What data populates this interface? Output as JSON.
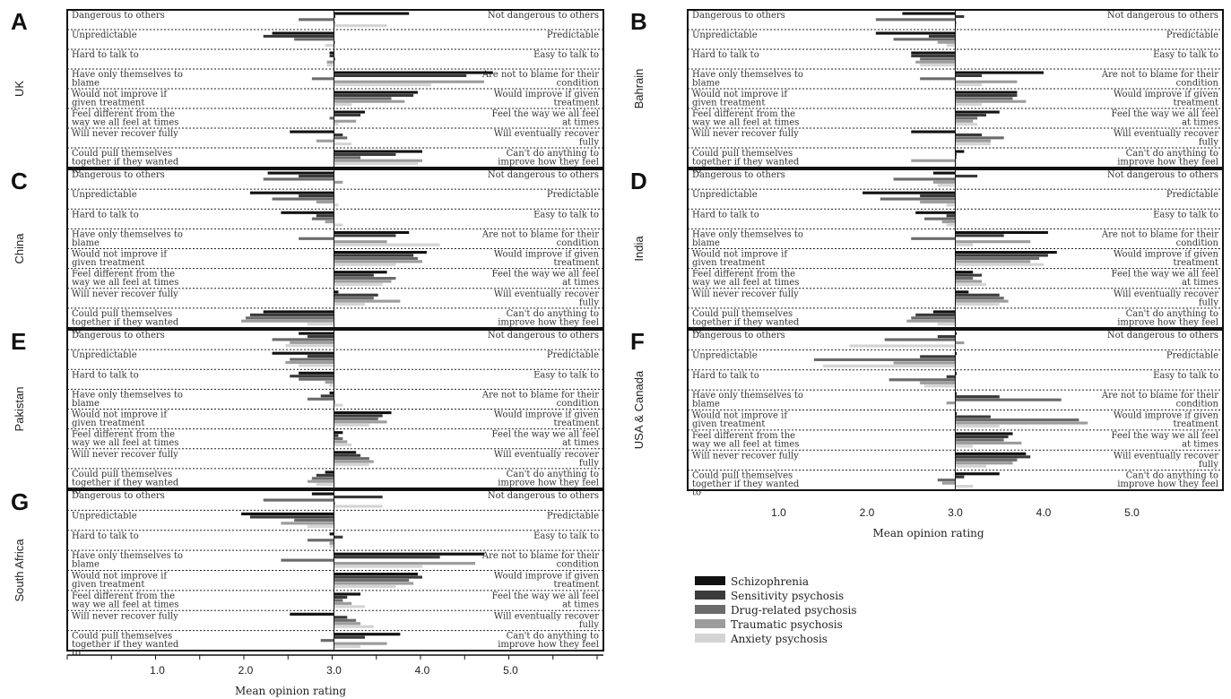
{
  "chart_data": {
    "type": "bar",
    "orientation": "horizontal",
    "xlim": [
      0,
      6
    ],
    "reference_line": 3.0,
    "grid": false,
    "legend_placement": "bottom-right",
    "series": [
      {
        "name": "Schizophrenia",
        "color": "#111111"
      },
      {
        "name": "Sensitivity psychosis",
        "color": "#3a3a3a"
      },
      {
        "name": "Drug-related psychosis",
        "color": "#6b6b6b"
      },
      {
        "name": "Traumatic psychosis",
        "color": "#9c9c9c"
      },
      {
        "name": "Anxiety psychosis",
        "color": "#d4d4d4"
      }
    ],
    "items": [
      {
        "left": "Dangerous to others",
        "right": "Not dangerous to others"
      },
      {
        "left": "Unpredictable",
        "right": "Predictable"
      },
      {
        "left": "Hard to talk to",
        "right": "Easy to talk to"
      },
      {
        "left": "Have only themselves to blame",
        "right": "Are not to blame for their condition"
      },
      {
        "left": "Would not improve if given treatment",
        "right": "Would improve if given treatment"
      },
      {
        "left": "Feel different from the way we all feel at times",
        "right": "Feel the way we all feel at times"
      },
      {
        "left": "Will never recover fully",
        "right": "Will eventually recover fully"
      },
      {
        "left": "Could pull themselves together if they wanted to",
        "right": "Can't do anything to improve how they feel"
      }
    ],
    "left_axis": {
      "ticks": [
        "1.0",
        "2.0",
        "3.0",
        "4.0",
        "5.0"
      ],
      "xlabel": "Mean opinion rating"
    },
    "right_axis": {
      "ticks": [
        "1.0",
        "2.0",
        "3.0",
        "4.0",
        "5.0"
      ],
      "xlabel": "Mean opinion rating"
    },
    "panels": [
      {
        "letter": "A",
        "country": "UK",
        "values": [
          [
            3.85,
            3.0,
            2.6,
            3.0,
            3.6
          ],
          [
            2.3,
            2.2,
            2.55,
            3.0,
            2.9
          ],
          [
            2.95,
            2.95,
            3.0,
            2.92,
            2.92
          ],
          [
            4.8,
            4.5,
            2.75,
            4.7,
            4.1
          ],
          [
            3.95,
            3.9,
            3.65,
            3.8,
            3.2
          ],
          [
            3.35,
            3.3,
            2.95,
            3.25,
            3.05
          ],
          [
            2.5,
            3.1,
            3.15,
            2.8,
            3.2
          ],
          [
            4.0,
            3.7,
            3.3,
            4.0,
            3.95
          ]
        ]
      },
      {
        "letter": "B",
        "country": "Bahrain",
        "values": [
          [
            2.4,
            3.1,
            2.1,
            3.0,
            3.0
          ],
          [
            2.1,
            2.7,
            2.3,
            2.8,
            2.9
          ],
          [
            2.5,
            2.5,
            2.6,
            2.55,
            2.6
          ],
          [
            4.0,
            3.3,
            2.6,
            3.7,
            3.3
          ],
          [
            3.7,
            3.7,
            3.65,
            3.8,
            3.3
          ],
          [
            3.5,
            3.35,
            3.25,
            3.2,
            3.25
          ],
          [
            2.5,
            3.3,
            3.55,
            3.4,
            3.4
          ],
          [
            3.1,
            3.0,
            3.0,
            2.5,
            3.0
          ]
        ]
      },
      {
        "letter": "C",
        "country": "China",
        "values": [
          [
            2.25,
            2.6,
            2.2,
            3.1,
            3.0
          ],
          [
            2.05,
            2.6,
            2.3,
            2.8,
            3.05
          ],
          [
            2.4,
            2.8,
            2.75,
            2.9,
            3.1
          ],
          [
            3.85,
            3.7,
            2.6,
            3.6,
            4.2
          ],
          [
            4.05,
            3.9,
            3.95,
            4.0,
            3.7
          ],
          [
            3.6,
            3.45,
            3.7,
            3.65,
            3.55
          ],
          [
            3.05,
            3.5,
            3.45,
            3.75,
            3.35
          ],
          [
            2.2,
            2.05,
            2.0,
            1.95,
            2.7
          ]
        ]
      },
      {
        "letter": "D",
        "country": "India",
        "values": [
          [
            2.75,
            3.25,
            2.3,
            2.75,
            2.8
          ],
          [
            1.95,
            2.6,
            2.15,
            2.6,
            2.9
          ],
          [
            2.55,
            2.9,
            2.65,
            2.85,
            2.9
          ],
          [
            4.05,
            3.55,
            2.5,
            3.85,
            3.2
          ],
          [
            4.15,
            4.05,
            3.95,
            3.85,
            4.0
          ],
          [
            3.2,
            3.3,
            3.2,
            3.3,
            3.35
          ],
          [
            3.15,
            3.5,
            3.55,
            3.6,
            3.5
          ],
          [
            2.75,
            2.55,
            2.5,
            2.45,
            2.8
          ]
        ]
      },
      {
        "letter": "E",
        "country": "Pakistan",
        "values": [
          [
            2.6,
            2.7,
            2.3,
            2.5,
            2.45
          ],
          [
            2.3,
            2.7,
            2.5,
            2.45,
            2.6
          ],
          [
            2.6,
            2.5,
            2.6,
            2.9,
            2.95
          ],
          [
            2.95,
            2.85,
            2.7,
            3.0,
            3.1
          ],
          [
            3.65,
            3.55,
            3.5,
            3.6,
            3.4
          ],
          [
            3.1,
            3.05,
            3.1,
            3.15,
            3.2
          ],
          [
            3.25,
            3.3,
            3.4,
            3.45,
            3.4
          ],
          [
            2.9,
            2.8,
            2.75,
            2.7,
            2.8
          ]
        ]
      },
      {
        "letter": "F",
        "country": "USA & Canada",
        "values": [
          [
            3.0,
            2.8,
            2.2,
            3.1,
            1.8
          ],
          [
            3.0,
            2.6,
            1.4,
            2.3,
            1.5
          ],
          [
            3.0,
            2.9,
            2.25,
            2.6,
            2.65
          ],
          [
            3.0,
            3.5,
            4.2,
            2.9,
            3.0
          ],
          [
            3.0,
            3.4,
            4.4,
            4.5,
            3.5
          ],
          [
            3.65,
            3.6,
            3.55,
            3.75,
            3.2
          ],
          [
            3.8,
            3.85,
            3.7,
            3.65,
            3.35
          ],
          [
            3.5,
            3.1,
            2.8,
            2.85,
            3.2
          ]
        ]
      },
      {
        "letter": "G",
        "country": "South Africa",
        "values": [
          [
            2.75,
            3.55,
            2.2,
            3.0,
            3.55
          ],
          [
            1.95,
            2.05,
            2.55,
            2.4,
            2.7
          ],
          [
            2.95,
            3.1,
            2.7,
            2.95,
            2.95
          ],
          [
            4.7,
            4.2,
            2.4,
            4.6,
            4.0
          ],
          [
            3.95,
            4.0,
            3.85,
            3.9,
            3.7
          ],
          [
            3.3,
            3.15,
            3.1,
            3.2,
            3.35
          ],
          [
            2.5,
            3.15,
            3.25,
            3.3,
            3.45
          ],
          [
            3.75,
            3.35,
            2.85,
            3.6,
            3.3
          ]
        ]
      }
    ]
  }
}
